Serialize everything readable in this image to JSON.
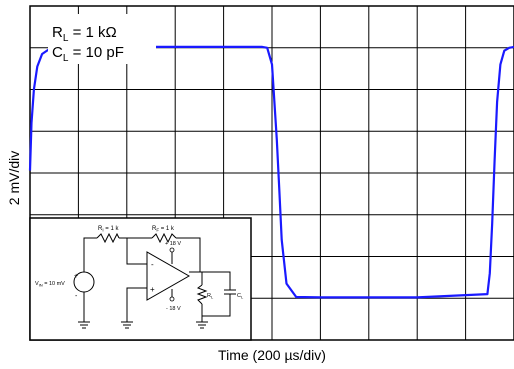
{
  "chart_data": {
    "type": "line",
    "xlabel": "Time (200 µs/div)",
    "ylabel": "2 mV/div",
    "x_units": "div",
    "y_units": "div",
    "xlim": [
      0,
      10
    ],
    "ylim": [
      0,
      8
    ],
    "grid": true,
    "series_color": "#1a1aff",
    "series": [
      {
        "x": [
          0.0,
          0.03,
          0.08,
          0.15,
          0.25,
          0.4,
          0.6,
          0.9,
          1.5,
          3.0,
          4.8,
          4.9,
          5.0,
          5.05,
          5.1,
          5.15,
          5.2,
          5.3,
          5.5,
          6.0,
          8.0,
          9.45,
          9.5,
          9.55,
          9.6,
          9.65,
          9.72,
          9.8,
          9.9,
          10.0
        ],
        "y": [
          4.06,
          5.2,
          6.0,
          6.55,
          6.85,
          6.97,
          7.02,
          7.02,
          7.02,
          7.02,
          7.02,
          7.0,
          6.6,
          5.7,
          4.8,
          3.6,
          2.4,
          1.35,
          1.03,
          1.02,
          1.02,
          1.1,
          1.6,
          2.8,
          4.3,
          5.7,
          6.6,
          6.93,
          7.0,
          7.02
        ]
      }
    ],
    "annotations": {
      "rl_label": "R",
      "rl_sub": "L",
      "rl_value": " = 1 kΩ",
      "cl_label": "C",
      "cl_sub": "L",
      "cl_value": " = 10 pF"
    }
  },
  "inset": {
    "ri_label": "R",
    "ri_sub": "I",
    "ri_value": " = 1 k",
    "rf_label": "R",
    "rf_sub": "F",
    "rf_value": " = 1 k",
    "vin_label": "V",
    "vin_sub": "IN",
    "vin_value": " = 10 mV",
    "vpos": "+ 18 V",
    "vneg": "- 18 V",
    "rl": "R",
    "rl_sub": "L",
    "cl": "C",
    "cl_sub": "L",
    "minus_in": "-",
    "plus_in": "+",
    "src_plus": "+",
    "src_minus": "-"
  }
}
